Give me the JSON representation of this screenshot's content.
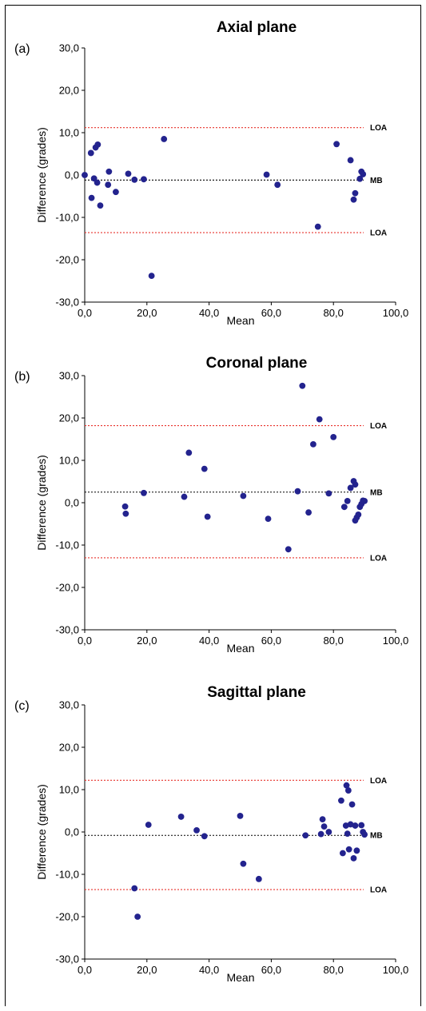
{
  "colors": {
    "point": "#23238e",
    "loa_line": "#e8332c",
    "mb_line": "#000000",
    "axis": "#000000"
  },
  "chart_data": [
    {
      "type": "scatter",
      "panel_label": "(a)",
      "title": "Axial plane",
      "xlabel": "Mean",
      "ylabel": "Difference (grades)",
      "xlim": [
        0,
        100
      ],
      "ylim": [
        -30,
        30
      ],
      "xticks": [
        "0,0",
        "20,0",
        "40,0",
        "60,0",
        "80,0",
        "100,0"
      ],
      "yticks": [
        "30,0",
        "20,0",
        "10,0",
        "0,0",
        "-10,0",
        "-20,0",
        "-30,0"
      ],
      "reference_lines": [
        {
          "label": "LOA",
          "y": 11.2,
          "style": "dotted",
          "color": "red"
        },
        {
          "label": "MB",
          "y": -1.2,
          "style": "dotted",
          "color": "black"
        },
        {
          "label": "LOA",
          "y": -13.6,
          "style": "dotted",
          "color": "red"
        }
      ],
      "x": [
        0.0,
        2.0,
        2.2,
        3.0,
        3.5,
        4.0,
        4.2,
        5.0,
        7.5,
        7.8,
        10.0,
        14.0,
        16.0,
        19.0,
        21.5,
        25.5,
        58.5,
        62.0,
        75.0,
        81.0,
        85.5,
        86.5,
        87.0,
        88.5,
        89.0,
        89.5
      ],
      "y": [
        0.0,
        5.2,
        -5.4,
        -0.8,
        6.5,
        -1.8,
        7.2,
        -7.2,
        -2.3,
        0.8,
        -4.0,
        0.3,
        -1.1,
        -1.0,
        -23.8,
        8.5,
        0.1,
        -2.3,
        -12.2,
        7.3,
        3.5,
        -5.8,
        -4.3,
        -0.9,
        0.8,
        0.2
      ]
    },
    {
      "type": "scatter",
      "panel_label": "(b)",
      "title": "Coronal plane",
      "xlabel": "Mean",
      "ylabel": "Difference (grades)",
      "xlim": [
        0,
        100
      ],
      "ylim": [
        -30,
        30
      ],
      "xticks": [
        "0,0",
        "20,0",
        "40,0",
        "60,0",
        "80,0",
        "100,0"
      ],
      "yticks": [
        "30,0",
        "20,0",
        "10,0",
        "0,0",
        "-10,0",
        "-20,0",
        "-30,0"
      ],
      "reference_lines": [
        {
          "label": "LOA",
          "y": 18.2,
          "style": "dotted",
          "color": "red"
        },
        {
          "label": "MB",
          "y": 2.5,
          "style": "dotted",
          "color": "black"
        },
        {
          "label": "LOA",
          "y": -13.0,
          "style": "dotted",
          "color": "red"
        }
      ],
      "x": [
        13.0,
        13.2,
        19.0,
        32.0,
        33.5,
        38.5,
        39.5,
        51.0,
        59.0,
        65.5,
        68.5,
        70.0,
        72.0,
        73.5,
        75.5,
        78.5,
        80.0,
        83.5,
        84.5,
        85.5,
        86.5,
        87.0,
        87.0,
        87.5,
        88.0,
        88.5,
        89.0,
        89.5,
        90.0
      ],
      "y": [
        -0.9,
        -2.6,
        2.3,
        1.4,
        11.8,
        8.0,
        -3.3,
        1.6,
        -3.8,
        -11.0,
        2.7,
        27.6,
        -2.3,
        13.8,
        19.7,
        2.2,
        15.5,
        -1.0,
        0.4,
        3.5,
        5.1,
        -4.2,
        4.3,
        -3.5,
        -2.8,
        -1.0,
        -0.3,
        0.5,
        0.4
      ]
    },
    {
      "type": "scatter",
      "panel_label": "(c)",
      "title": "Sagittal plane",
      "xlabel": "Mean",
      "ylabel": "Difference (grades)",
      "xlim": [
        0,
        100
      ],
      "ylim": [
        -30,
        30
      ],
      "xticks": [
        "0,0",
        "20,0",
        "40,0",
        "60,0",
        "80,0",
        "100,0"
      ],
      "yticks": [
        "30,0",
        "20,0",
        "10,0",
        "0,0",
        "-10,0",
        "-20,0",
        "-30,0"
      ],
      "reference_lines": [
        {
          "label": "LOA",
          "y": 12.2,
          "style": "dotted",
          "color": "red"
        },
        {
          "label": "MB",
          "y": -0.8,
          "style": "dotted",
          "color": "black"
        },
        {
          "label": "LOA",
          "y": -13.6,
          "style": "dotted",
          "color": "red"
        }
      ],
      "x": [
        16.0,
        17.0,
        20.5,
        31.0,
        36.0,
        38.5,
        50.0,
        51.0,
        56.0,
        71.0,
        76.0,
        76.5,
        77.0,
        78.5,
        82.5,
        83.0,
        84.0,
        84.2,
        84.5,
        84.8,
        85.0,
        85.5,
        86.0,
        86.5,
        87.0,
        87.5,
        89.0,
        89.5,
        90.0
      ],
      "y": [
        -13.3,
        -20.0,
        1.7,
        3.6,
        0.4,
        -1.0,
        3.8,
        -7.5,
        -11.1,
        -0.8,
        -0.5,
        3.0,
        1.3,
        0.0,
        7.4,
        -5.0,
        1.5,
        11.0,
        -0.4,
        9.8,
        -4.1,
        1.8,
        6.5,
        -6.2,
        1.5,
        -4.4,
        1.6,
        0.0,
        -0.6
      ]
    }
  ]
}
